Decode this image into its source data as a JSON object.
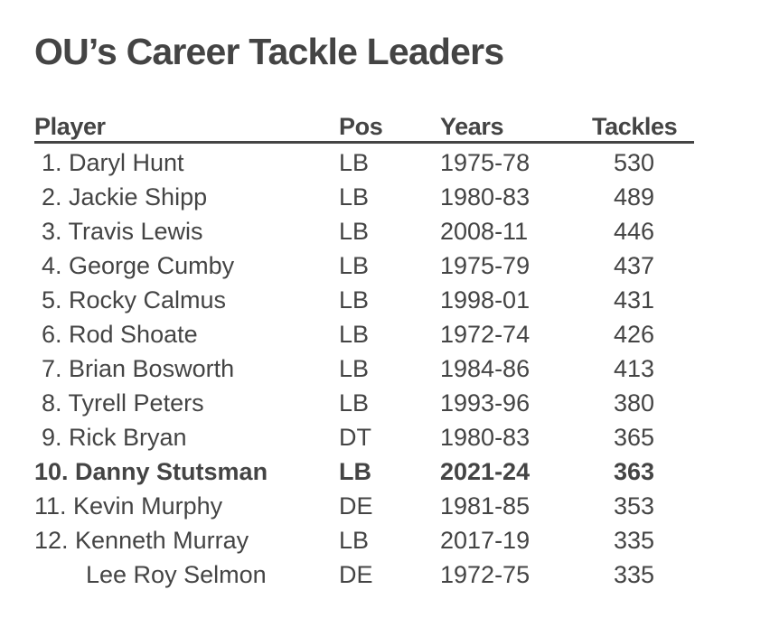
{
  "title": "OU’s Career Tackle Leaders",
  "table": {
    "headers": {
      "player": "Player",
      "pos": "Pos",
      "years": "Years",
      "tackles": "Tackles"
    },
    "rows": [
      {
        "player": "1. Daryl Hunt",
        "pos": "LB",
        "years": "1975-78",
        "tackles": "530"
      },
      {
        "player": "2. Jackie Shipp",
        "pos": "LB",
        "years": "1980-83",
        "tackles": "489"
      },
      {
        "player": "3. Travis Lewis",
        "pos": "LB",
        "years": "2008-11",
        "tackles": "446"
      },
      {
        "player": "4. George Cumby",
        "pos": "LB",
        "years": "1975-79",
        "tackles": "437"
      },
      {
        "player": "5. Rocky Calmus",
        "pos": "LB",
        "years": "1998-01",
        "tackles": "431"
      },
      {
        "player": "6. Rod Shoate",
        "pos": "LB",
        "years": "1972-74",
        "tackles": "426"
      },
      {
        "player": "7. Brian Bosworth",
        "pos": "LB",
        "years": "1984-86",
        "tackles": "413"
      },
      {
        "player": "8. Tyrell Peters",
        "pos": "LB",
        "years": "1993-96",
        "tackles": "380"
      },
      {
        "player": "9. Rick Bryan",
        "pos": "DT",
        "years": "1980-83",
        "tackles": "365"
      },
      {
        "player": "10. Danny Stutsman",
        "pos": "LB",
        "years": "2021-24",
        "tackles": "363",
        "highlight": true
      },
      {
        "player": "11. Kevin Murphy",
        "pos": "DE",
        "years": "1981-85",
        "tackles": "353"
      },
      {
        "player": "12. Kenneth Murray",
        "pos": "LB",
        "years": "2017-19",
        "tackles": "335"
      },
      {
        "player": "Lee Roy Selmon",
        "pos": "DE",
        "years": "1972-75",
        "tackles": "335"
      }
    ]
  },
  "colors": {
    "text": "#444444",
    "background": "#ffffff"
  }
}
